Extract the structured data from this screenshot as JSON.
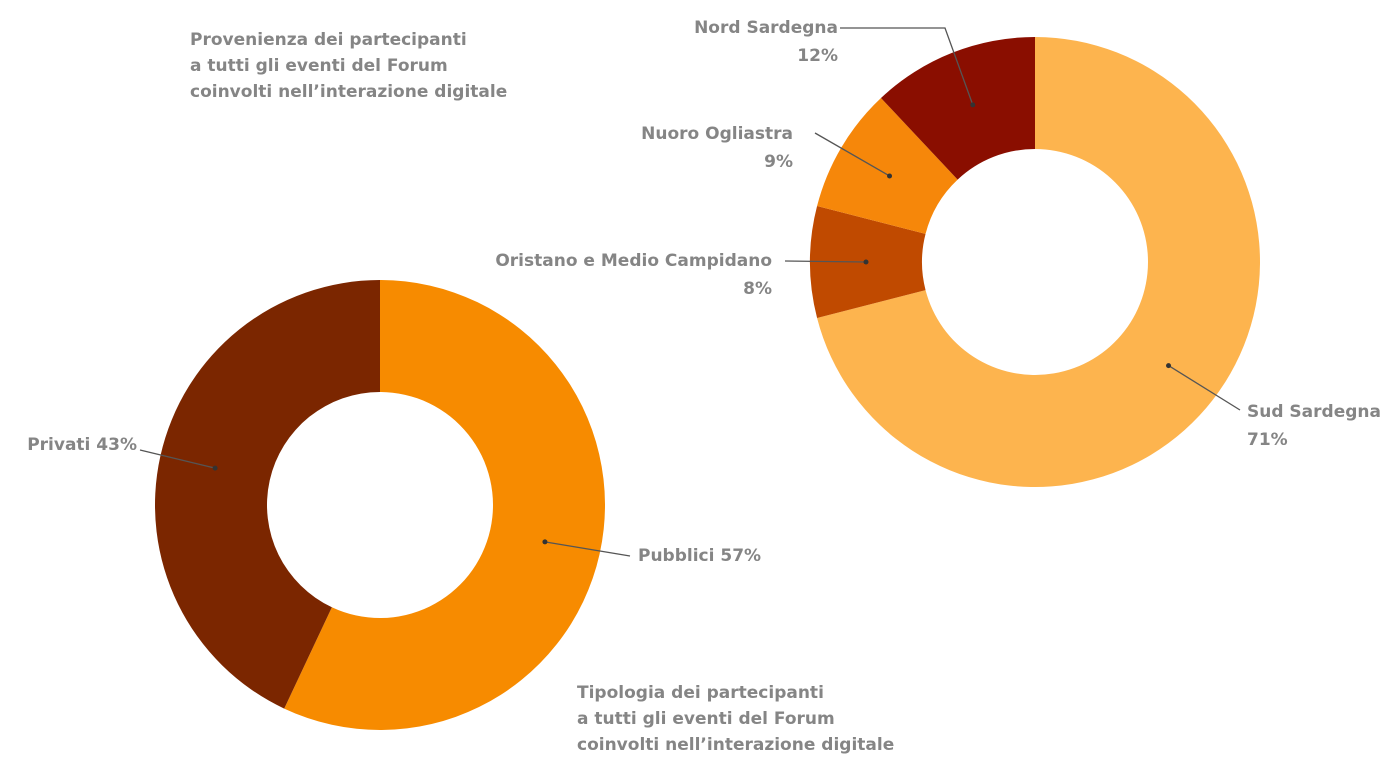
{
  "chart_data": [
    {
      "type": "pie",
      "donut": true,
      "title": [
        "Provenienza dei partecipanti",
        "a tutti gli eventi del Forum",
        "coinvolti nell’interazione digitale"
      ],
      "categories": [
        "Sud Sardegna",
        "Oristano e Medio Campidano",
        "Nuoro Ogliastra",
        "Nord Sardegna"
      ],
      "values": [
        71,
        8,
        9,
        12
      ],
      "value_labels": [
        "71%",
        "8%",
        "9%",
        "12%"
      ],
      "colors": [
        "#fdb44e",
        "#c04a00",
        "#f6870a",
        "#8a0e00"
      ]
    },
    {
      "type": "pie",
      "donut": true,
      "title": [
        "Tipologia dei partecipanti",
        "a tutti gli eventi del Forum",
        "coinvolti nell’interazione digitale"
      ],
      "categories": [
        "Pubblici",
        "Privati"
      ],
      "values": [
        57,
        43
      ],
      "value_labels": [
        "57%",
        "43%"
      ],
      "colors": [
        "#f78b00",
        "#7b2600"
      ]
    }
  ]
}
